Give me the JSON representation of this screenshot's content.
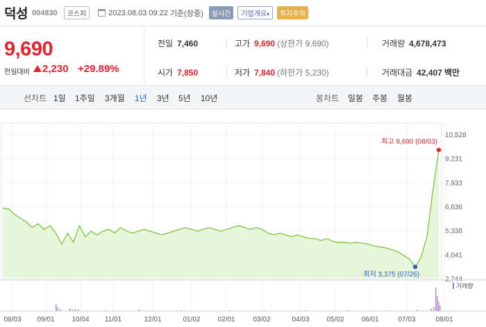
{
  "header": {
    "name": "덕성",
    "code": "004830",
    "market": "코스피",
    "datetime": "2023.08.03 09:22",
    "datetime_suffix": "기준(장중)",
    "realtime_label": "실시간",
    "company_label": "기업개요",
    "warning_label": "투자주의"
  },
  "price": {
    "current": "9,690",
    "change_label": "전일대비",
    "change": "2,230",
    "rate": "+29.89%"
  },
  "stats": {
    "prev_close": {
      "label": "전일",
      "value": "7,460"
    },
    "high": {
      "label": "고가",
      "value": "9,690",
      "sub": "(상한가 9,690)"
    },
    "volume": {
      "label": "거래량",
      "value": "4,678,473"
    },
    "open": {
      "label": "시가",
      "value": "7,850"
    },
    "low": {
      "label": "저가",
      "value": "7,840",
      "sub": "(하한가 5,230)"
    },
    "amount": {
      "label": "거래대금",
      "value": "42,407",
      "unit": "백만"
    }
  },
  "colors": {
    "up": "#e5222d",
    "down": "#2a5fc4",
    "line": "#7cc43a",
    "fill": "#e4f5d6"
  },
  "tabs": {
    "line_chart": "선차트",
    "periods": [
      "1일",
      "1주일",
      "3개월",
      "1년",
      "3년",
      "5년",
      "10년"
    ],
    "active_period": "1년",
    "candle_chart": "봉차트",
    "candle_periods": [
      "일봉",
      "주봉",
      "월봉"
    ]
  },
  "chart_data": {
    "type": "line",
    "y_ticks": [
      "10,528",
      "9,231",
      "7,933",
      "6,636",
      "5,338",
      "4,041",
      "2,744"
    ],
    "ylim": [
      2744,
      10528
    ],
    "x_ticks": [
      "08/03",
      "09/01",
      "10/04",
      "11/01",
      "12/01",
      "01/02",
      "02/01",
      "03/02",
      "04/03",
      "05/02",
      "06/01",
      "07/03",
      "08/01"
    ],
    "high_annotation": "최고 9,690 (08/03)",
    "low_annotation": "최저 3,375 (07/26)",
    "volume_legend": "거래량",
    "series": [
      {
        "values": [
          6550,
          6500,
          6200,
          6000,
          5800,
          5500,
          5700,
          5400,
          5600,
          5200,
          4600,
          5200,
          4700,
          5600,
          5000,
          5300,
          5100,
          5300,
          5400,
          5200,
          5500,
          5300,
          5200,
          5300,
          5400,
          5300,
          5200,
          5100,
          5200,
          5300,
          5400,
          5500,
          5400,
          5300,
          5400,
          5500,
          5400,
          5300,
          5400,
          5500,
          5600,
          5500,
          5400,
          5500,
          5400,
          5200,
          5100,
          5200,
          5100,
          5000,
          5100,
          5000,
          4900,
          4900,
          4800,
          4900,
          4750,
          4700,
          4700,
          4650,
          4700,
          4650,
          4600,
          4500,
          4450,
          4400,
          4300,
          4200,
          4000,
          3800,
          3375,
          3900,
          5000,
          7500,
          9690
        ]
      }
    ]
  }
}
